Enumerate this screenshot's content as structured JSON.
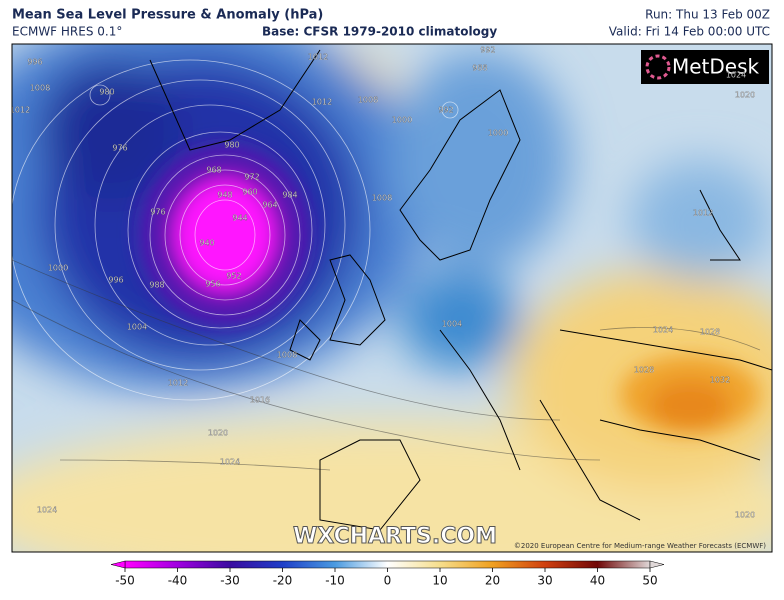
{
  "header": {
    "title": "Mean Sea Level Pressure & Anomaly (hPa)",
    "model": "ECMWF HRES 0.1°",
    "base": "Base: CFSR 1979-2010 climatology",
    "run": "Run: Thu 13 Feb 00Z",
    "valid": "Valid: Fri 14 Feb 00:00 UTC"
  },
  "map": {
    "logo": "MetDesk",
    "watermark": "WXCHARTS.COM",
    "credit": "©2020 European Centre for Medium-range Weather Forecasts (ECMWF)",
    "contour_labels": [
      980,
      976,
      976,
      968,
      972,
      980,
      964,
      960,
      948,
      944,
      940,
      952,
      956,
      984,
      988,
      996,
      1000,
      1004,
      1008,
      1012,
      1016,
      1020,
      1024,
      1024,
      1008,
      1008,
      1000,
      992,
      1000,
      988,
      992,
      1012,
      1012,
      1004,
      1024,
      1028,
      1028,
      1032,
      1020,
      1024,
      1012,
      1020,
      1008,
      1012,
      996
    ]
  },
  "colorbar": {
    "ticks": [
      -50,
      -40,
      -30,
      -20,
      -10,
      0,
      10,
      20,
      30,
      40,
      50
    ]
  }
}
